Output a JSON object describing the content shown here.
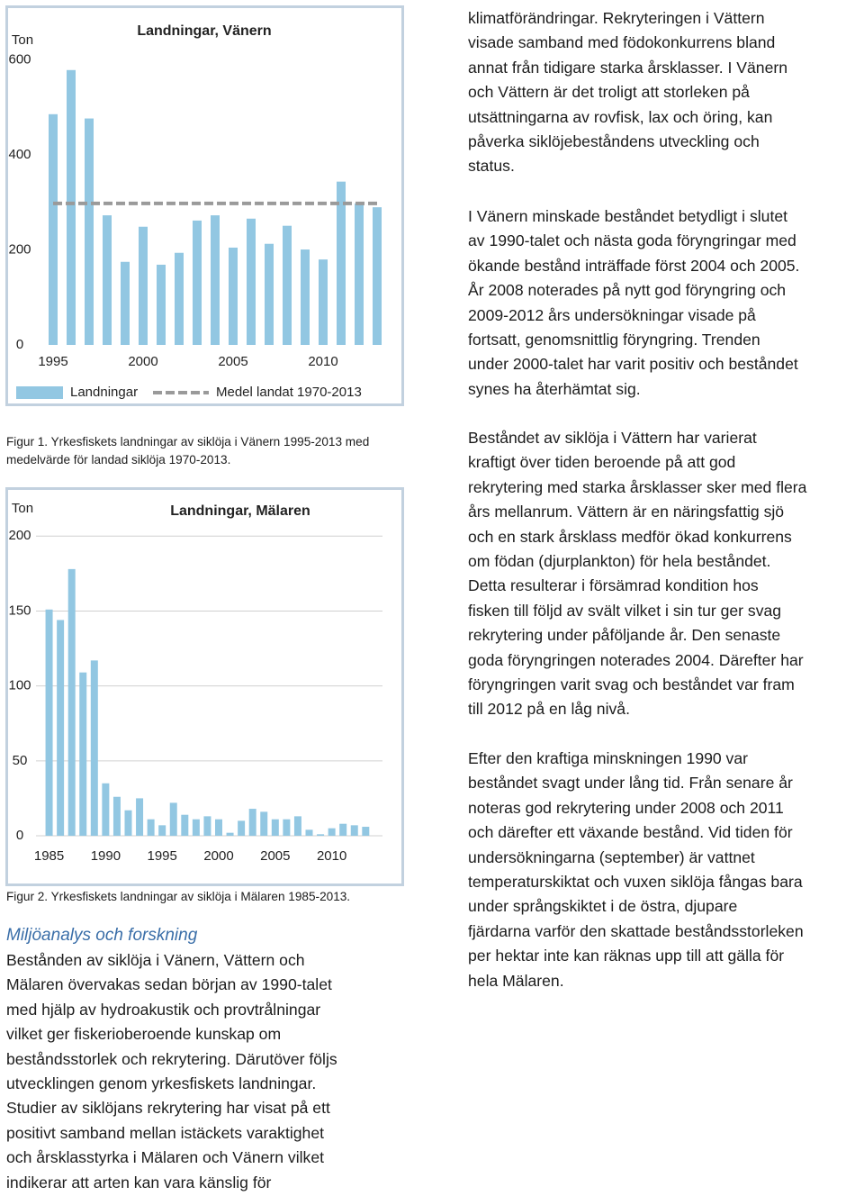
{
  "chart_data": [
    {
      "type": "bar",
      "title": "Landningar, Vänern",
      "y_label": "Ton",
      "x": [
        1995,
        1996,
        1997,
        1998,
        1999,
        2000,
        2001,
        2002,
        2003,
        2004,
        2005,
        2006,
        2007,
        2008,
        2009,
        2010,
        2011,
        2012,
        2013
      ],
      "xlim": [
        1994,
        2014
      ],
      "xticks": [
        1995,
        2000,
        2005,
        2010
      ],
      "ylim": [
        0,
        700
      ],
      "yticks": [
        0,
        200,
        400,
        600
      ],
      "grid": false,
      "legend": "bottom",
      "series": [
        {
          "name": "Landningar",
          "color": "#92c7e2",
          "values": [
            486,
            579,
            477,
            273,
            175,
            249,
            169,
            194,
            262,
            273,
            205,
            266,
            213,
            251,
            201,
            180,
            344,
            298,
            290
          ]
        },
        {
          "name": "Medel landat 1970-2013",
          "color": "#9a9a9a",
          "type": "line",
          "dashed": true,
          "values": [
            298,
            298,
            298,
            298,
            298,
            298,
            298,
            298,
            298,
            298,
            298,
            298,
            298,
            298,
            298,
            298,
            298,
            298,
            298
          ]
        }
      ]
    },
    {
      "type": "bar",
      "title": "Landningar, Mälaren",
      "y_label": "Ton",
      "x": [
        1985,
        1986,
        1987,
        1988,
        1989,
        1990,
        1991,
        1992,
        1993,
        1994,
        1995,
        1996,
        1997,
        1998,
        1999,
        2000,
        2001,
        2002,
        2003,
        2004,
        2005,
        2006,
        2007,
        2008,
        2009,
        2010,
        2011,
        2012,
        2013
      ],
      "xlim": [
        1984,
        2016
      ],
      "xticks": [
        1985,
        1990,
        1995,
        2000,
        2005,
        2010
      ],
      "ylim": [
        0,
        220
      ],
      "yticks": [
        0,
        50,
        100,
        150,
        200
      ],
      "grid": true,
      "color": "#92c7e2",
      "values": [
        151,
        144,
        178,
        109,
        117,
        35,
        26,
        17,
        25,
        11,
        7,
        22,
        14,
        11,
        13,
        11,
        2,
        10,
        18,
        16,
        11,
        11,
        13,
        4,
        1,
        5,
        8,
        7,
        6
      ]
    }
  ],
  "document": {
    "captions": [
      [
        "Figur 1. Yrkesfiskets landningar av siklöja i Vänern 1995-2013 med",
        "medelvärde för landad siklöja 1970-2013."
      ],
      [
        "Figur 2. Yrkesfiskets landningar av siklöja i Mälaren 1985-2013."
      ]
    ],
    "heading": "Miljöanalys och forskning",
    "left_paragraph": [
      "Bestånden av siklöja i Vänern, Vättern och",
      "Mälaren övervakas sedan början av 1990-talet",
      "med hjälp av hydroakustik och provtrålningar",
      "vilket ger fiskerioberoende kunskap om",
      "beståndsstorlek och rekrytering. Därutöver följs",
      "utvecklingen genom yrkesfiskets landningar.",
      "Studier av siklöjans rekrytering har visat på ett",
      "positivt samband mellan istäckets varaktighet",
      "och årsklasstyrka i Mälaren och Vänern vilket",
      "indikerar att arten kan vara känslig för"
    ],
    "right_paragraphs": [
      [
        "klimatförändringar. Rekryteringen i Vättern",
        "visade samband med födokonkurrens bland",
        "annat från tidigare starka årsklasser. I Vänern",
        "och Vättern är det troligt att storleken på",
        "utsättningarna av rovfisk, lax och öring, kan",
        "påverka siklöjebeståndens utveckling och",
        "status."
      ],
      [
        "I Vänern minskade beståndet betydligt i slutet",
        "av 1990-talet och nästa goda föryngringar med",
        "ökande bestånd inträffade först 2004 och 2005.",
        "År 2008 noterades på nytt god föryngring och",
        "2009-2012 års undersökningar visade på",
        "fortsatt, genomsnittlig föryngring. Trenden",
        "under 2000-talet har varit positiv och beståndet",
        "synes ha återhämtat sig."
      ],
      [
        "Beståndet av siklöja i Vättern har varierat",
        "kraftigt över tiden beroende på att god",
        "rekrytering med starka årsklasser sker med flera",
        "års mellanrum. Vättern är en näringsfattig sjö",
        "och en stark årsklass medför ökad konkurrens",
        "om födan (djurplankton) för hela beståndet.",
        "Detta resulterar i försämrad kondition hos",
        "fisken till följd av svält vilket i sin tur ger svag",
        "rekrytering under påföljande år. Den senaste",
        "goda föryngringen noterades 2004. Därefter har",
        "föryngringen varit svag och beståndet var fram",
        "till 2012 på en låg nivå."
      ],
      [
        "Efter den kraftiga minskningen 1990 var",
        "beståndet svagt under lång tid. Från senare år",
        "noteras god rekrytering under 2008 och 2011",
        "och därefter ett växande bestånd. Vid tiden för",
        "undersökningarna (september) är vattnet",
        "temperaturskiktat och vuxen siklöja fångas bara",
        "under språngskiktet i de östra, djupare",
        "fjärdarna varför den skattade beståndsstorleken",
        "per hektar inte kan räknas upp till att gälla för",
        "hela Mälaren."
      ]
    ]
  }
}
